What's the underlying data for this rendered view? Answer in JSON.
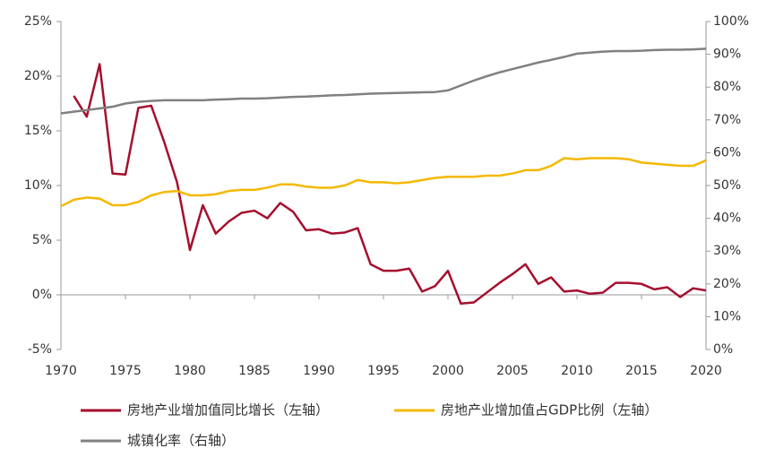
{
  "chart_data": {
    "type": "line",
    "x": [
      1970,
      1971,
      1972,
      1973,
      1974,
      1975,
      1976,
      1977,
      1978,
      1979,
      1980,
      1981,
      1982,
      1983,
      1984,
      1985,
      1986,
      1987,
      1988,
      1989,
      1990,
      1991,
      1992,
      1993,
      1994,
      1995,
      1996,
      1997,
      1998,
      1999,
      2000,
      2001,
      2002,
      2003,
      2004,
      2005,
      2006,
      2007,
      2008,
      2009,
      2010,
      2011,
      2012,
      2013,
      2014,
      2015,
      2016,
      2017,
      2018,
      2019,
      2020
    ],
    "xlim": [
      1970,
      2020
    ],
    "xticks": [
      1970,
      1975,
      1980,
      1985,
      1990,
      1995,
      2000,
      2005,
      2010,
      2015,
      2020
    ],
    "ylim": [
      -5,
      25
    ],
    "yticks": [
      {
        "value": -5,
        "label": "-5%"
      },
      {
        "value": 0,
        "label": "0%"
      },
      {
        "value": 5,
        "label": "5%"
      },
      {
        "value": 10,
        "label": "10%"
      },
      {
        "value": 15,
        "label": "15%"
      },
      {
        "value": 20,
        "label": "20%"
      },
      {
        "value": 25,
        "label": "25%"
      }
    ],
    "y2lim": [
      0,
      100
    ],
    "y2ticks": [
      {
        "value": 0,
        "label": "0%"
      },
      {
        "value": 10,
        "label": "10%"
      },
      {
        "value": 20,
        "label": "20%"
      },
      {
        "value": 30,
        "label": "30%"
      },
      {
        "value": 40,
        "label": "40%"
      },
      {
        "value": 50,
        "label": "50%"
      },
      {
        "value": 60,
        "label": "60%"
      },
      {
        "value": 70,
        "label": "70%"
      },
      {
        "value": 80,
        "label": "80%"
      },
      {
        "value": 90,
        "label": "90%"
      },
      {
        "value": 100,
        "label": "100%"
      }
    ],
    "series": [
      {
        "name": "房地产业增加值同比增长（左轴）",
        "color": "#a50f2d",
        "values": [
          null,
          18.2,
          16.3,
          21.1,
          11.1,
          11.0,
          17.1,
          17.3,
          14.0,
          10.3,
          4.1,
          8.2,
          5.6,
          6.7,
          7.5,
          7.7,
          7.0,
          8.4,
          7.6,
          5.9,
          6.0,
          5.6,
          5.7,
          6.1,
          2.8,
          2.2,
          2.2,
          2.4,
          0.3,
          0.8,
          2.2,
          -0.8,
          -0.7,
          0.2,
          1.1,
          1.9,
          2.8,
          1.0,
          1.6,
          0.3,
          0.4,
          0.1,
          0.2,
          1.1,
          1.1,
          1.0,
          0.5,
          0.7,
          -0.2,
          0.6,
          0.4
        ]
      },
      {
        "name": "房地产业增加值占GDP比例（左轴）",
        "color": "#f5b800",
        "values": [
          8.1,
          8.7,
          8.9,
          8.8,
          8.2,
          8.2,
          8.5,
          9.1,
          9.4,
          9.5,
          9.1,
          9.1,
          9.2,
          9.5,
          9.6,
          9.6,
          9.8,
          10.1,
          10.1,
          9.9,
          9.8,
          9.8,
          10.0,
          10.5,
          10.3,
          10.3,
          10.2,
          10.3,
          10.5,
          10.7,
          10.8,
          10.8,
          10.8,
          10.9,
          10.9,
          11.1,
          11.4,
          11.4,
          11.8,
          12.5,
          12.4,
          12.5,
          12.5,
          12.5,
          12.4,
          12.1,
          12.0,
          11.9,
          11.8,
          11.8,
          12.3
        ]
      },
      {
        "name": "城镇化率（右轴）",
        "color": "#808080",
        "axis": "y2",
        "values": [
          72,
          72.5,
          73,
          73.5,
          74,
          75,
          75.5,
          75.8,
          76,
          76,
          76,
          76,
          76.2,
          76.3,
          76.5,
          76.5,
          76.6,
          76.8,
          77,
          77.1,
          77.3,
          77.5,
          77.6,
          77.8,
          78,
          78.1,
          78.2,
          78.3,
          78.4,
          78.5,
          79,
          80.5,
          82,
          83.3,
          84.5,
          85.5,
          86.5,
          87.5,
          88.3,
          89.2,
          90.2,
          90.5,
          90.8,
          91,
          91,
          91.1,
          91.3,
          91.4,
          91.4,
          91.5,
          91.7
        ]
      }
    ]
  }
}
